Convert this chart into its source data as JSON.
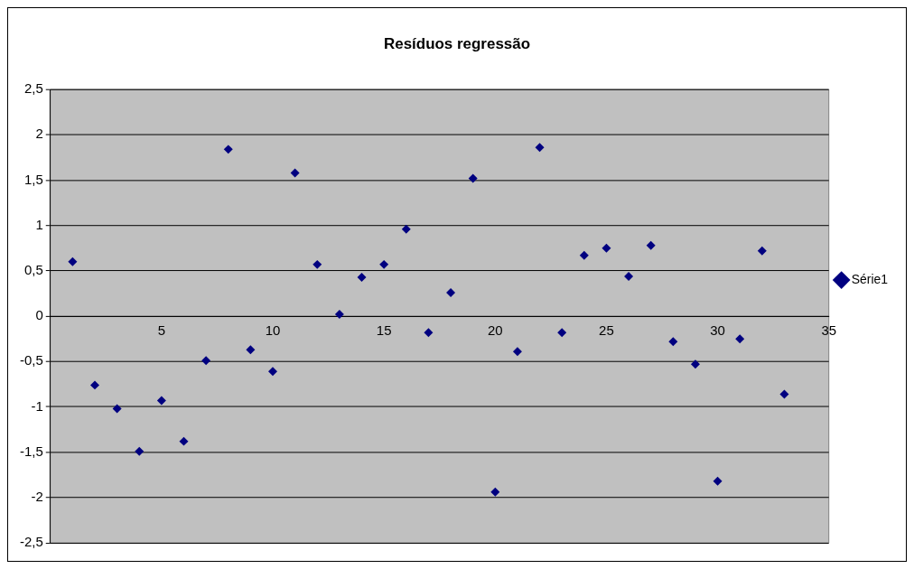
{
  "chart_data": {
    "type": "scatter",
    "title": "Resíduos regressão",
    "x": [
      1,
      2,
      3,
      4,
      5,
      6,
      7,
      8,
      9,
      10,
      11,
      12,
      13,
      14,
      15,
      16,
      17,
      18,
      19,
      20,
      21,
      22,
      23,
      24,
      25,
      26,
      27,
      28,
      29,
      30,
      31,
      32,
      33
    ],
    "series": [
      {
        "name": "Série1",
        "color": "#000080",
        "values": [
          0.6,
          -0.76,
          -1.02,
          -1.49,
          -0.93,
          -1.38,
          -0.49,
          1.84,
          -0.37,
          -0.61,
          1.58,
          0.57,
          0.02,
          0.43,
          0.57,
          0.96,
          -0.18,
          0.26,
          1.52,
          -1.94,
          -0.39,
          1.86,
          -0.18,
          0.67,
          0.75,
          0.44,
          0.78,
          -0.28,
          -0.53,
          -1.82,
          -0.25,
          0.72,
          -0.86
        ]
      }
    ],
    "xlim": [
      0,
      35
    ],
    "xticks": [
      5,
      10,
      15,
      20,
      25,
      30,
      35
    ],
    "ylim": [
      -2.5,
      2.5
    ],
    "yticks": [
      {
        "value": -2.5,
        "label": "-2,5"
      },
      {
        "value": -2,
        "label": "-2"
      },
      {
        "value": -1.5,
        "label": "-1,5"
      },
      {
        "value": -1,
        "label": "-1"
      },
      {
        "value": -0.5,
        "label": "-0,5"
      },
      {
        "value": 0,
        "label": "0"
      },
      {
        "value": 0.5,
        "label": "0,5"
      },
      {
        "value": 1,
        "label": "1"
      },
      {
        "value": 1.5,
        "label": "1,5"
      },
      {
        "value": 2,
        "label": "2"
      },
      {
        "value": 2.5,
        "label": "2,5"
      }
    ],
    "grid": "y",
    "legend": "right",
    "marker": "diamond"
  }
}
